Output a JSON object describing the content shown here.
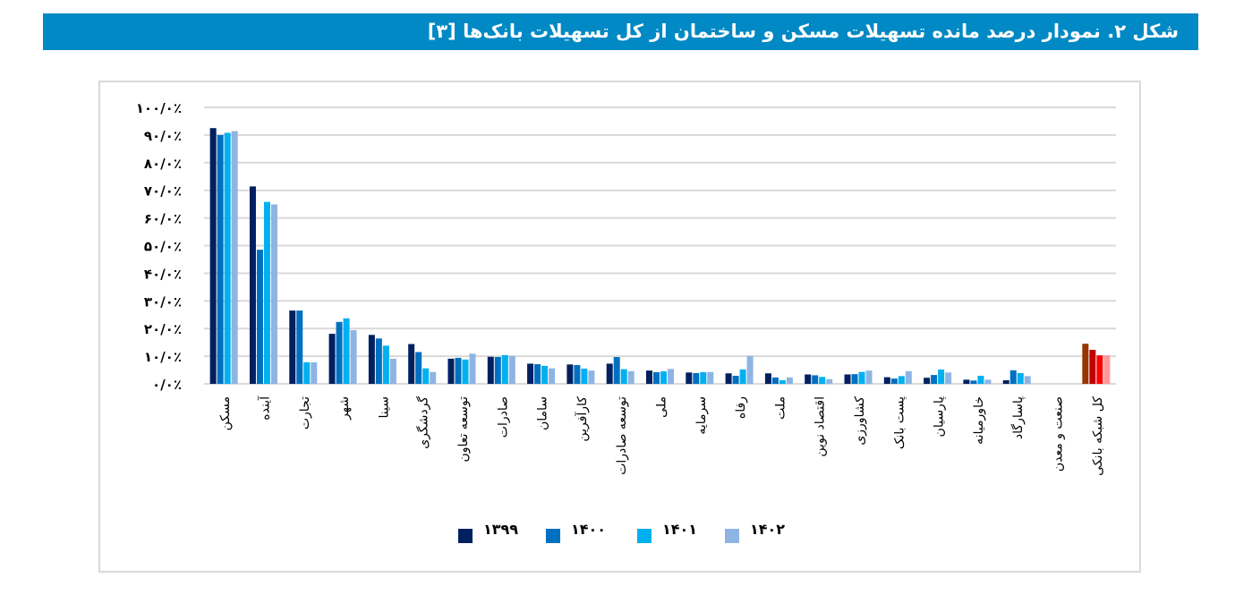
{
  "title": "شکل ۲. نمودار درصد مانده تسهیلات مسکن و ساختمان از کل تسهیلات بانک‌ها [۳]",
  "colors": {
    "title_bar": "#0089C4",
    "grid": "#d9d9d9"
  },
  "chart_data": {
    "type": "bar",
    "ylim": [
      0,
      100
    ],
    "yticks": [
      0,
      10,
      20,
      30,
      40,
      50,
      60,
      70,
      80,
      90,
      100
    ],
    "ytick_labels": [
      "۰/۰٪",
      "۱۰/۰٪",
      "۲۰/۰٪",
      "۳۰/۰٪",
      "۴۰/۰٪",
      "۵۰/۰٪",
      "۶۰/۰٪",
      "۷۰/۰٪",
      "۸۰/۰٪",
      "۹۰/۰٪",
      "۱۰۰/۰٪"
    ],
    "grid": true,
    "legend_position": "bottom",
    "categories": [
      "مسکن",
      "آینده",
      "تجارت",
      "شهر",
      "سینا",
      "گردشگری",
      "توسعه تعاون",
      "صادرات",
      "سامان",
      "کارآفرین",
      "توسعه صادرات",
      "ملی",
      "سرمایه",
      "رفاه",
      "ملت",
      "اقتصاد نوین",
      "کشاورزی",
      "پست بانک",
      "پارسیان",
      "خاورمیانه",
      "پاسارگاد",
      "صنعت و معدن",
      "کل شبکه بانکی"
    ],
    "series": [
      {
        "name": "۱۳۹۹",
        "color": "#002060",
        "highlight_color": "#993300",
        "values": [
          92.5,
          71.4,
          26.5,
          18.1,
          17.7,
          14.4,
          9.1,
          9.8,
          7.3,
          7.0,
          7.3,
          4.8,
          4.1,
          3.8,
          3.8,
          3.4,
          3.4,
          2.4,
          2.2,
          1.5,
          1.3,
          0,
          14.5
        ]
      },
      {
        "name": "۱۴۰۰",
        "color": "#0070C0",
        "highlight_color": "#C00000",
        "values": [
          90.0,
          48.5,
          26.5,
          22.4,
          16.4,
          11.5,
          9.4,
          9.7,
          7.1,
          6.8,
          9.7,
          4.2,
          3.9,
          2.9,
          2.3,
          3.1,
          3.5,
          1.9,
          3.2,
          1.2,
          4.9,
          0,
          12.3
        ]
      },
      {
        "name": "۱۴۰۱",
        "color": "#00B0F0",
        "highlight_color": "#FF0000",
        "values": [
          90.8,
          65.8,
          7.8,
          23.7,
          13.8,
          5.6,
          8.8,
          10.4,
          6.5,
          5.5,
          5.3,
          4.5,
          4.2,
          5.2,
          1.3,
          2.5,
          4.3,
          2.8,
          5.2,
          2.9,
          3.9,
          0,
          10.3
        ]
      },
      {
        "name": "۱۴۰۲",
        "color": "#8EB4E3",
        "highlight_color": "#FF9999",
        "values": [
          91.4,
          64.9,
          7.8,
          19.4,
          9.1,
          4.3,
          10.9,
          10.1,
          5.6,
          4.8,
          4.6,
          5.4,
          4.3,
          10.1,
          2.3,
          1.7,
          4.8,
          4.6,
          4.1,
          1.5,
          2.8,
          0,
          10.3
        ]
      }
    ]
  }
}
